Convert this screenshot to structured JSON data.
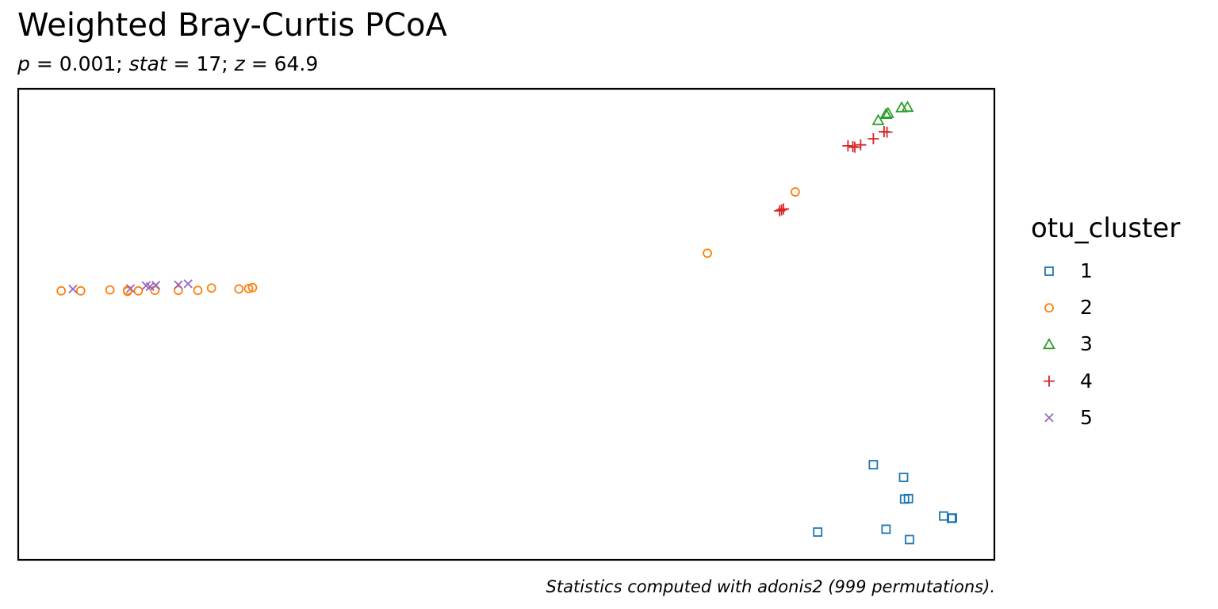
{
  "subtitle": {
    "p_label": "p",
    "p_value": " = 0.001; ",
    "stat_label": "stat",
    "stat_value": " = 17; ",
    "z_label": "z",
    "z_value": " = 64.9"
  },
  "chart_data": {
    "type": "scatter",
    "title": "Weighted Bray-Curtis PCoA",
    "caption": "Statistics computed with adonis2 (999 permutations).",
    "xlabel": "",
    "ylabel": "",
    "axes_shown": false,
    "grid": false,
    "xlim": [
      0,
      100
    ],
    "ylim": [
      0,
      100
    ],
    "legend": {
      "title": "otu_cluster",
      "placement": "right"
    },
    "series": [
      {
        "name": "1",
        "marker": "square",
        "color": "#1f77b4",
        "points": [
          [
            87.6,
            20.2
          ],
          [
            90.7,
            17.5
          ],
          [
            90.8,
            12.9
          ],
          [
            91.2,
            13.0
          ],
          [
            94.8,
            9.3
          ],
          [
            95.6,
            8.8
          ],
          [
            95.7,
            8.9
          ],
          [
            81.9,
            5.9
          ],
          [
            88.9,
            6.5
          ],
          [
            91.3,
            4.3
          ]
        ]
      },
      {
        "name": "2",
        "marker": "circle",
        "color": "#ff7f0e",
        "points": [
          [
            4.4,
            57.1
          ],
          [
            6.4,
            57.1
          ],
          [
            9.4,
            57.3
          ],
          [
            11.2,
            57.2
          ],
          [
            11.2,
            57.0
          ],
          [
            12.3,
            57.1
          ],
          [
            14.0,
            57.2
          ],
          [
            16.4,
            57.2
          ],
          [
            18.4,
            57.2
          ],
          [
            19.8,
            57.7
          ],
          [
            22.6,
            57.5
          ],
          [
            23.6,
            57.6
          ],
          [
            24.0,
            57.8
          ],
          [
            70.6,
            65.1
          ],
          [
            79.6,
            78.1
          ]
        ]
      },
      {
        "name": "3",
        "marker": "triangle",
        "color": "#2ca02c",
        "points": [
          [
            88.1,
            93.3
          ],
          [
            88.9,
            94.6
          ],
          [
            89.1,
            94.8
          ],
          [
            90.5,
            96.0
          ],
          [
            91.1,
            96.1
          ]
        ]
      },
      {
        "name": "4",
        "marker": "plus",
        "color": "#d62728",
        "points": [
          [
            85.0,
            87.9
          ],
          [
            85.5,
            87.7
          ],
          [
            85.7,
            87.6
          ],
          [
            86.3,
            88.1
          ],
          [
            87.6,
            89.4
          ],
          [
            88.7,
            90.9
          ],
          [
            89.0,
            90.8
          ],
          [
            78.0,
            74.1
          ],
          [
            78.2,
            74.3
          ],
          [
            78.4,
            74.5
          ]
        ]
      },
      {
        "name": "5",
        "marker": "x",
        "color": "#9467bd",
        "points": [
          [
            5.6,
            57.5
          ],
          [
            11.5,
            57.6
          ],
          [
            13.1,
            58.2
          ],
          [
            13.5,
            58.0
          ],
          [
            14.1,
            58.3
          ],
          [
            16.4,
            58.4
          ],
          [
            17.4,
            58.6
          ]
        ]
      }
    ]
  }
}
